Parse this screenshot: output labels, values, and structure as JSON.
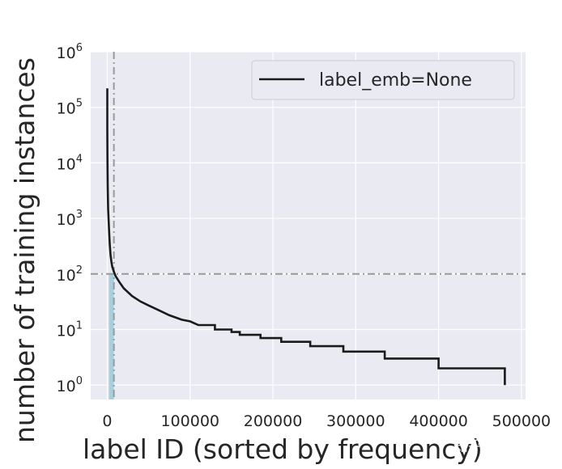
{
  "chart_data": {
    "type": "line",
    "xlabel": "label ID (sorted by frequency)",
    "ylabel": "number of training instances",
    "x_ticks": [
      "0",
      "100000",
      "200000",
      "300000",
      "400000",
      "500000"
    ],
    "y_ticks": [
      "10^0",
      "10^1",
      "10^2",
      "10^3",
      "10^4",
      "10^5",
      "10^6"
    ],
    "xlim": [
      -20000,
      505000
    ],
    "y_scale": "log",
    "ylim": [
      0.55,
      1000000
    ],
    "grid": true,
    "legend_position": "top-right",
    "series": [
      {
        "name": "label_emb=None",
        "color": "#1a1a1a",
        "x": [
          1,
          10,
          50,
          200,
          500,
          1000,
          2000,
          3000,
          4000,
          5000,
          6000,
          8000,
          10000,
          15000,
          20000,
          30000,
          40000,
          50000,
          60000,
          75000,
          90000,
          100000,
          110000,
          130000,
          150000,
          160000,
          185000,
          210000,
          245000,
          285000,
          335000,
          400000,
          480000
        ],
        "y": [
          220000,
          150000,
          40000,
          12000,
          4000,
          1500,
          700,
          350,
          220,
          165,
          135,
          110,
          92,
          70,
          55,
          40,
          32,
          27,
          23,
          18,
          15,
          14,
          12,
          10,
          9,
          8,
          7,
          6,
          5,
          4,
          3,
          2,
          1
        ]
      }
    ],
    "reference_lines": {
      "horizontal_y": 100,
      "vertical_x": 8000,
      "shaded_region_x": [
        2000,
        8000
      ]
    }
  },
  "watermark": "知乎 @殷通",
  "colors": {
    "plot_bg": "#eaeaf2",
    "grid": "#ffffff",
    "reference": "#9a9a9a",
    "shade": "#a8cfe0"
  }
}
